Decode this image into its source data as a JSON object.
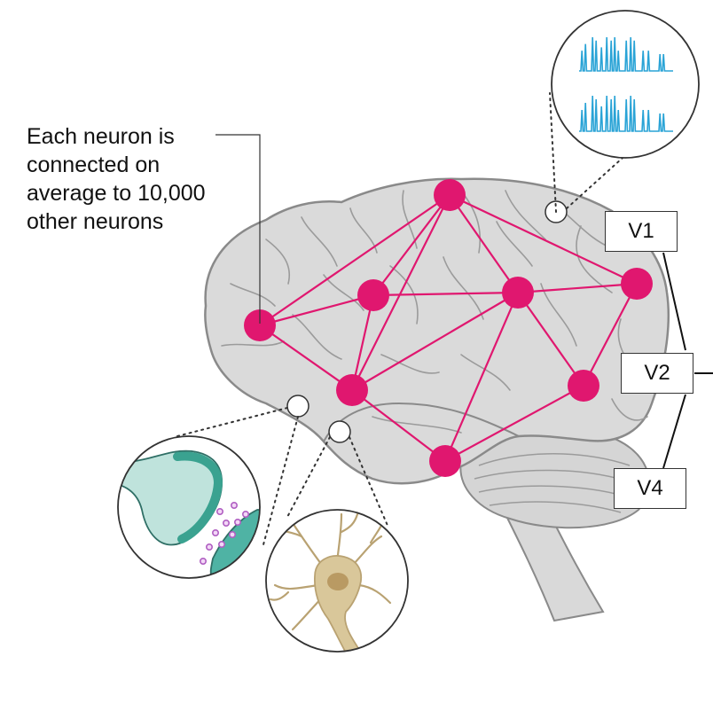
{
  "caption": {
    "lines": [
      "Each neuron is",
      "connected on",
      "average to 10,000",
      "other neurons"
    ]
  },
  "visual_areas": [
    {
      "id": "v1",
      "label": "V1"
    },
    {
      "id": "v2",
      "label": "V2"
    },
    {
      "id": "v4",
      "label": "V4"
    }
  ],
  "colors": {
    "brain_fill": "#d9d9d9",
    "brain_outline": "#8a8a8a",
    "sulcus": "#9b9b9b",
    "network": "#e0176f",
    "spike": "#29a3d6",
    "synapse": "#4fb3a4",
    "vesicle": "#b05fc2",
    "neuron_body": "#d9c79a"
  },
  "icons": [
    "brain",
    "spike-train-inset",
    "synapse-inset",
    "neuron-inset"
  ]
}
